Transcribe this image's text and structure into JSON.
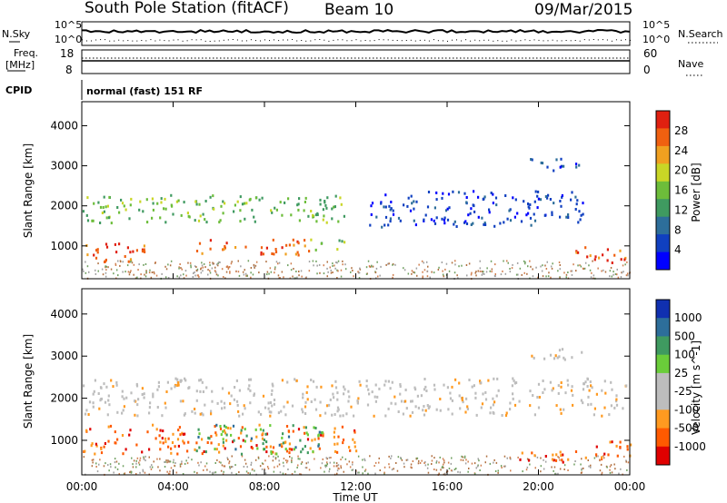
{
  "header": {
    "title": "South Pole Station (fitACF)",
    "beam": "Beam 10",
    "date": "09/Mar/2015"
  },
  "info_panels": {
    "nsky_label": "N.Sky",
    "nsky_ticks": [
      "10^5",
      "10^0"
    ],
    "nsearch_label": "N.Search",
    "nsearch_ticks": [
      "10^5",
      "10^0"
    ],
    "freq_label_line1": "Freq.",
    "freq_label_line2": "[MHz]",
    "freq_ticks": [
      "18",
      "8"
    ],
    "nave_label": "Nave",
    "nave_ticks": [
      "60",
      "0"
    ],
    "cpid_label": "CPID",
    "cpid_value": "normal (fast) 151 RF"
  },
  "chart_data": [
    {
      "type": "heatmap",
      "name": "power",
      "ylabel": "Slant Range [km]",
      "ylim": [
        180,
        4600
      ],
      "yticks": [
        "4000",
        "3000",
        "2000",
        "1000"
      ],
      "colorbar_label": "Power [dB]",
      "colorbar_ticks": [
        "28",
        "24",
        "20",
        "16",
        "12",
        "8",
        "4"
      ],
      "colorbar_range": [
        0,
        32
      ],
      "colors": [
        "#0000ff",
        "#1040c0",
        "#2d6e9a",
        "#3f9a60",
        "#6dbd3a",
        "#c9d626",
        "#f0a020",
        "#f06010",
        "#e02010"
      ],
      "features": [
        {
          "t0": 0.0,
          "t1": 3.0,
          "r0": 600,
          "r1": 1100,
          "level": "high"
        },
        {
          "t0": 5.0,
          "t1": 10.0,
          "r0": 800,
          "r1": 1200,
          "level": "high"
        },
        {
          "t0": 10.0,
          "t1": 11.5,
          "r0": 900,
          "r1": 1200,
          "level": "mid"
        },
        {
          "t0": 0.0,
          "t1": 11.5,
          "r0": 1600,
          "r1": 2300,
          "level": "mid"
        },
        {
          "t0": 12.5,
          "t1": 22.0,
          "r0": 1500,
          "r1": 2400,
          "level": "low"
        },
        {
          "t0": 21.5,
          "t1": 24.0,
          "r0": 600,
          "r1": 1000,
          "level": "high"
        },
        {
          "t0": 19.5,
          "t1": 22.0,
          "r0": 2900,
          "r1": 3200,
          "level": "low"
        }
      ]
    },
    {
      "type": "heatmap",
      "name": "velocity",
      "ylabel": "Slant Range [km]",
      "ylim": [
        180,
        4600
      ],
      "yticks": [
        "4000",
        "3000",
        "2000",
        "1000"
      ],
      "colorbar_label": "Velocity [m s^-1]",
      "colorbar_ticks": [
        "1000",
        "500",
        "100",
        "25",
        "-25",
        "-100",
        "-500",
        "-1000"
      ],
      "colorbar_range": [
        -1000,
        1000
      ],
      "colors": [
        "#e00000",
        "#ff5a00",
        "#ff9a20",
        "#bdbdbd",
        "#bdbdbd",
        "#6acd3a",
        "#3f9a60",
        "#2d6e9a",
        "#1030b0"
      ],
      "features": [
        {
          "t0": 0.0,
          "t1": 12.0,
          "r0": 700,
          "r1": 1400,
          "level": "neg"
        },
        {
          "t0": 5.0,
          "t1": 10.5,
          "r0": 700,
          "r1": 1400,
          "level": "pos"
        },
        {
          "t0": 0.0,
          "t1": 24.0,
          "r0": 1600,
          "r1": 2500,
          "level": "zero"
        },
        {
          "t0": 19.0,
          "t1": 23.0,
          "r0": 500,
          "r1": 800,
          "level": "neg"
        },
        {
          "t0": 22.5,
          "t1": 24.0,
          "r0": 600,
          "r1": 1100,
          "level": "neg"
        },
        {
          "t0": 19.5,
          "t1": 22.0,
          "r0": 2900,
          "r1": 3200,
          "level": "zero"
        }
      ]
    }
  ],
  "time_axis": {
    "xlabel": "Time UT",
    "xlim": [
      0,
      24
    ],
    "ticks": [
      "00:00",
      "04:00",
      "08:00",
      "12:00",
      "16:00",
      "20:00",
      "00:00"
    ]
  }
}
